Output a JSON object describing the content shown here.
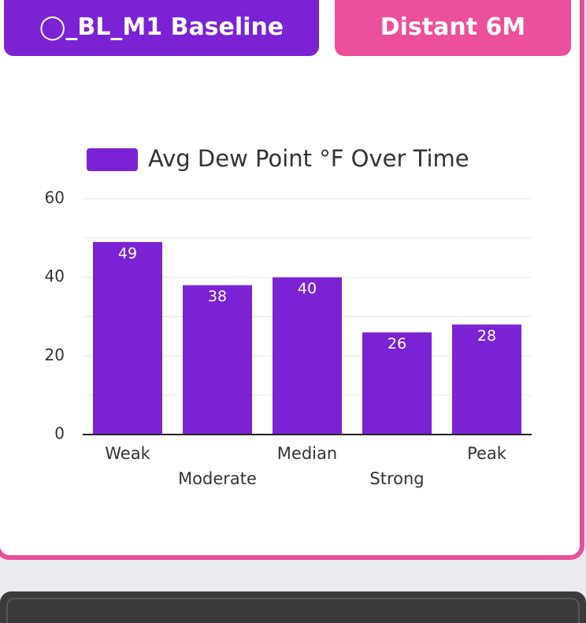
{
  "header": {
    "buttons": [
      "◯_BL_M1 Baseline",
      "Distant 6M"
    ]
  },
  "chart_data": {
    "type": "bar",
    "categories": [
      "Weak",
      "Moderate",
      "Median",
      "Strong",
      "Peak"
    ],
    "series": [
      {
        "name": "Avg Dew Point °F Over Time",
        "color": "#7b22d4",
        "values": [
          49,
          38,
          40,
          26,
          28
        ]
      }
    ],
    "ylim": [
      0,
      60
    ],
    "yticks": [
      0,
      20,
      40,
      60
    ],
    "minor_yticks": [
      10,
      30,
      50
    ],
    "grid": true,
    "legend": "top"
  }
}
